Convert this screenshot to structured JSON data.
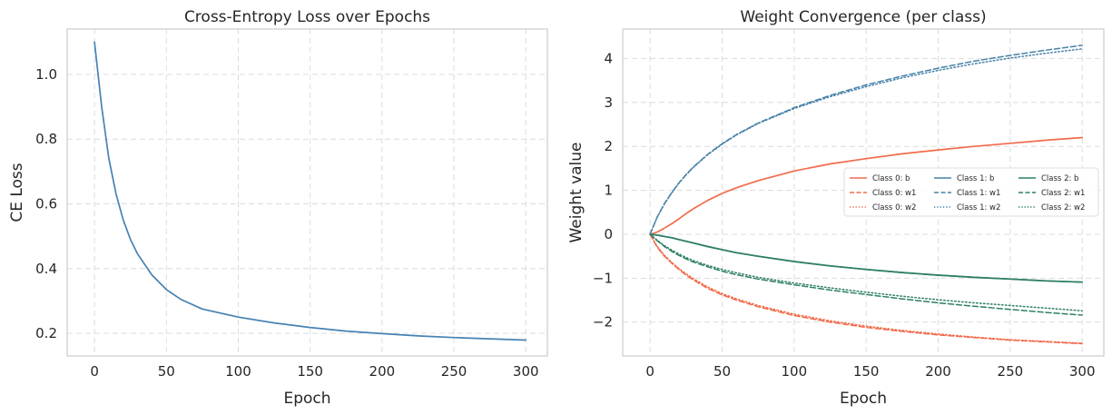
{
  "colors": {
    "loss": "#4682b4",
    "class0": "#f26b4b",
    "class1": "#4682a8",
    "class2": "#2e8062",
    "grid": "#dcdcdc",
    "frame": "#cfcfcf"
  },
  "chart_data": [
    {
      "type": "line",
      "title": "Cross-Entropy Loss over Epochs",
      "xlabel": "Epoch",
      "ylabel": "CE Loss",
      "xlim": [
        -19,
        315
      ],
      "ylim": [
        0.13,
        1.14
      ],
      "xticks": [
        0,
        50,
        100,
        150,
        200,
        250,
        300
      ],
      "xtick_labels": [
        "0",
        "50",
        "100",
        "150",
        "200",
        "250",
        "300"
      ],
      "yticks": [
        0.2,
        0.4,
        0.6,
        0.8,
        1.0
      ],
      "ytick_labels": [
        "0.2",
        "0.4",
        "0.6",
        "0.8",
        "1.0"
      ],
      "grid": true,
      "series": [
        {
          "name": "CE Loss",
          "color_key": "loss",
          "style": "solid",
          "x": [
            0,
            5,
            10,
            15,
            20,
            25,
            30,
            40,
            50,
            60,
            75,
            100,
            125,
            150,
            175,
            200,
            225,
            250,
            275,
            300
          ],
          "y": [
            1.1,
            0.9,
            0.74,
            0.63,
            0.55,
            0.49,
            0.445,
            0.38,
            0.335,
            0.305,
            0.275,
            0.25,
            0.232,
            0.218,
            0.207,
            0.199,
            0.192,
            0.187,
            0.183,
            0.179
          ]
        }
      ]
    },
    {
      "type": "line",
      "title": "Weight Convergence (per class)",
      "xlabel": "Epoch",
      "ylabel": "Weight value",
      "xlim": [
        -19,
        315
      ],
      "ylim": [
        -2.77,
        4.67
      ],
      "xticks": [
        0,
        50,
        100,
        150,
        200,
        250,
        300
      ],
      "xtick_labels": [
        "0",
        "50",
        "100",
        "150",
        "200",
        "250",
        "300"
      ],
      "yticks": [
        -2,
        -1,
        0,
        1,
        2,
        3,
        4
      ],
      "ytick_labels": [
        "−2",
        "−1",
        "0",
        "1",
        "2",
        "3",
        "4"
      ],
      "grid": true,
      "legend_position": "center-right",
      "legend_columns": 3,
      "x": [
        0,
        5,
        10,
        15,
        20,
        25,
        30,
        40,
        50,
        60,
        75,
        100,
        125,
        150,
        175,
        200,
        225,
        250,
        275,
        300
      ],
      "series": [
        {
          "name": "Class 0: b",
          "color_key": "class0",
          "style": "solid",
          "y": [
            0,
            0.05,
            0.14,
            0.24,
            0.35,
            0.47,
            0.58,
            0.77,
            0.93,
            1.06,
            1.22,
            1.44,
            1.6,
            1.72,
            1.83,
            1.92,
            2.0,
            2.07,
            2.14,
            2.2
          ]
        },
        {
          "name": "Class 0: w1",
          "color_key": "class0",
          "style": "dashed",
          "y": [
            0,
            -0.3,
            -0.5,
            -0.66,
            -0.8,
            -0.93,
            -1.04,
            -1.23,
            -1.38,
            -1.5,
            -1.65,
            -1.85,
            -2.0,
            -2.12,
            -2.21,
            -2.29,
            -2.35,
            -2.41,
            -2.45,
            -2.49
          ]
        },
        {
          "name": "Class 0: w2",
          "color_key": "class0",
          "style": "dotted",
          "y": [
            0,
            -0.28,
            -0.48,
            -0.64,
            -0.78,
            -0.9,
            -1.01,
            -1.2,
            -1.35,
            -1.47,
            -1.62,
            -1.82,
            -1.97,
            -2.09,
            -2.19,
            -2.27,
            -2.34,
            -2.4,
            -2.44,
            -2.48
          ]
        },
        {
          "name": "Class 1: b",
          "color_key": "class1",
          "style": "solid",
          "y": [
            0,
            -0.02,
            -0.05,
            -0.08,
            -0.12,
            -0.16,
            -0.2,
            -0.28,
            -0.35,
            -0.42,
            -0.5,
            -0.62,
            -0.72,
            -0.8,
            -0.87,
            -0.93,
            -0.98,
            -1.02,
            -1.06,
            -1.09
          ]
        },
        {
          "name": "Class 1: w1",
          "color_key": "class1",
          "style": "dashed",
          "y": [
            0,
            0.4,
            0.7,
            0.95,
            1.17,
            1.36,
            1.53,
            1.82,
            2.06,
            2.27,
            2.53,
            2.88,
            3.16,
            3.4,
            3.6,
            3.78,
            3.94,
            4.07,
            4.19,
            4.3
          ]
        },
        {
          "name": "Class 1: w2",
          "color_key": "class1",
          "style": "dotted",
          "y": [
            0,
            0.39,
            0.69,
            0.94,
            1.16,
            1.35,
            1.52,
            1.81,
            2.05,
            2.26,
            2.52,
            2.86,
            3.13,
            3.36,
            3.56,
            3.73,
            3.88,
            4.01,
            4.12,
            4.22
          ]
        },
        {
          "name": "Class 2: b",
          "color_key": "class2",
          "style": "solid",
          "y": [
            0,
            -0.02,
            -0.05,
            -0.08,
            -0.12,
            -0.16,
            -0.2,
            -0.28,
            -0.35,
            -0.42,
            -0.5,
            -0.62,
            -0.72,
            -0.8,
            -0.87,
            -0.93,
            -0.98,
            -1.02,
            -1.06,
            -1.09
          ]
        },
        {
          "name": "Class 2: w1",
          "color_key": "class2",
          "style": "dashed",
          "y": [
            0,
            -0.15,
            -0.28,
            -0.39,
            -0.48,
            -0.56,
            -0.63,
            -0.74,
            -0.84,
            -0.92,
            -1.02,
            -1.15,
            -1.27,
            -1.37,
            -1.47,
            -1.56,
            -1.64,
            -1.71,
            -1.78,
            -1.84
          ]
        },
        {
          "name": "Class 2: w2",
          "color_key": "class2",
          "style": "dotted",
          "y": [
            0,
            -0.14,
            -0.26,
            -0.36,
            -0.45,
            -0.53,
            -0.6,
            -0.71,
            -0.8,
            -0.88,
            -0.98,
            -1.11,
            -1.22,
            -1.32,
            -1.41,
            -1.49,
            -1.56,
            -1.62,
            -1.68,
            -1.74
          ]
        }
      ]
    }
  ]
}
